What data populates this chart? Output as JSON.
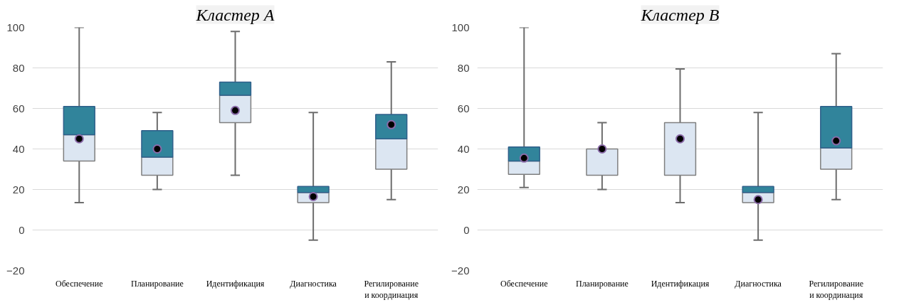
{
  "chart_data": [
    {
      "type": "box",
      "title": "Кластер A",
      "categories": [
        "Обеспечение",
        "Планирование",
        "Идентификация",
        "Диагностика",
        "Регилирование\nи координация"
      ],
      "boxes": [
        {
          "low": 13.5,
          "q1": 34,
          "median": 47,
          "q3": 61,
          "high": 100,
          "mean": 45
        },
        {
          "low": 20,
          "q1": 27,
          "median": 36,
          "q3": 49,
          "high": 58,
          "mean": 40
        },
        {
          "low": 27,
          "q1": 53,
          "median": 66.5,
          "q3": 73,
          "high": 98,
          "mean": 59
        },
        {
          "low": -5,
          "q1": 13.5,
          "median": 18.5,
          "q3": 21.5,
          "high": 58,
          "mean": 16.5
        },
        {
          "low": 15,
          "q1": 30,
          "median": 45,
          "q3": 57,
          "high": 83,
          "mean": 52
        }
      ],
      "colors": [
        "#dce6f2",
        "#dce6f2",
        "#dce6f2",
        "#dce6f2",
        "#dce6f2"
      ],
      "ylim": [
        -20,
        100
      ],
      "yticks": [
        -20,
        0,
        20,
        40,
        60,
        80,
        100
      ],
      "grid": "y"
    },
    {
      "type": "box",
      "title": "Кластер B",
      "categories": [
        "Обеспечение",
        "Планирование",
        "Идентификация",
        "Диагностика",
        "Регилирование\nи координация"
      ],
      "boxes": [
        {
          "low": 21,
          "q1": 27.5,
          "median": 34,
          "q3": 41,
          "high": 100,
          "mean": 35.5
        },
        {
          "low": 20,
          "q1": 27,
          "median": 40,
          "q3": 40,
          "high": 53,
          "mean": 40
        },
        {
          "low": 13.5,
          "q1": 27,
          "median": 53,
          "q3": 53,
          "high": 79.5,
          "mean": 45
        },
        {
          "low": -5,
          "q1": 13.5,
          "median": 18.5,
          "q3": 21.5,
          "high": 58,
          "mean": 15
        },
        {
          "low": 15,
          "q1": 30,
          "median": 40.5,
          "q3": 61,
          "high": 87,
          "mean": 44
        }
      ],
      "colors": [
        "#dce6f2",
        "#dce6f2",
        "#dce6f2",
        "#dce6f2",
        "#dce6f2"
      ],
      "ylim": [
        -20,
        100
      ],
      "yticks": [
        -20,
        0,
        20,
        40,
        60,
        80,
        100
      ],
      "grid": "y"
    }
  ]
}
